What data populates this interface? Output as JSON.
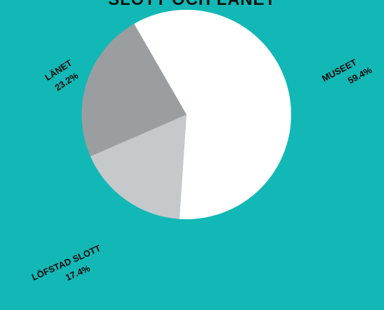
{
  "chart_data": {
    "type": "pie",
    "title": "SLOTT OCH LÄNET",
    "slices": [
      {
        "label": "MUSEET",
        "value": 59.4,
        "value_label": "59.4%",
        "color": "#ffffff"
      },
      {
        "label": "LÖFSTAD SLOTT",
        "value": 17.4,
        "value_label": "17.4%",
        "color": "#c6c9cb"
      },
      {
        "label": "LÄNET",
        "value": 23.2,
        "value_label": "23.2%",
        "color": "#9b9ea0"
      }
    ]
  },
  "colors": {
    "background": "#12b8b5",
    "label_text": "#0a0a0a"
  }
}
